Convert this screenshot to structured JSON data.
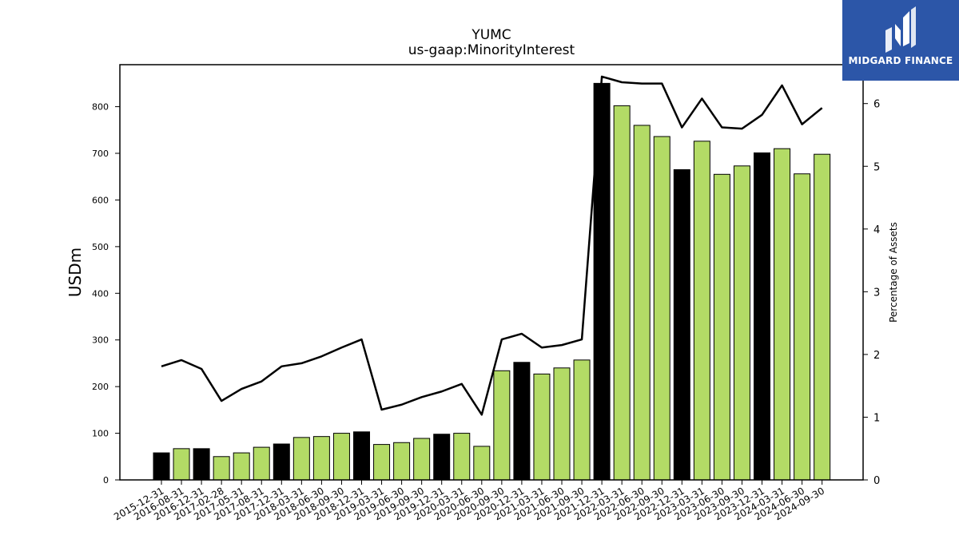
{
  "brand": {
    "name": "MIDGARD FINANCE",
    "icon": "midgard-m-logo-icon",
    "bg_color": "#2c56a8"
  },
  "chart_data": {
    "type": "bar",
    "title": "YUMC",
    "subtitle": "us-gaap:MinorityInterest",
    "ylabel": "USDm",
    "ylabel_right": "Percentage of Assets",
    "ylim": [
      0,
      890
    ],
    "ylim_right": [
      0,
      6.62
    ],
    "yticks": [
      0,
      100,
      200,
      300,
      400,
      500,
      600,
      700,
      800
    ],
    "yticks_right": [
      0,
      1,
      2,
      3,
      4,
      5,
      6
    ],
    "grid": false,
    "colors": {
      "annual": "#000000",
      "interim": "#b3db66",
      "line": "#000000"
    },
    "categories": [
      "2015-12-31",
      "2016-08-31",
      "2016-12-31",
      "2017-02-28",
      "2017-05-31",
      "2017-08-31",
      "2017-12-31",
      "2018-03-31",
      "2018-06-30",
      "2018-09-30",
      "2018-12-31",
      "2019-03-31",
      "2019-06-30",
      "2019-09-30",
      "2019-12-31",
      "2020-03-31",
      "2020-06-30",
      "2020-09-30",
      "2020-12-31",
      "2021-03-31",
      "2021-06-30",
      "2021-09-30",
      "2021-12-31",
      "2022-03-31",
      "2022-06-30",
      "2022-09-30",
      "2022-12-31",
      "2023-03-31",
      "2023-06-30",
      "2023-09-30",
      "2023-12-31",
      "2024-03-31",
      "2024-06-30",
      "2024-09-30"
    ],
    "series": [
      {
        "kind": "bar",
        "values": [
          58,
          67,
          67,
          50,
          58,
          70,
          77,
          91,
          93,
          100,
          103,
          76,
          80,
          89,
          98,
          100,
          72,
          234,
          252,
          227,
          240,
          257,
          850,
          802,
          760,
          736,
          665,
          726,
          655,
          673,
          701,
          710,
          656,
          698
        ],
        "annual": [
          true,
          false,
          true,
          false,
          false,
          false,
          true,
          false,
          false,
          false,
          true,
          false,
          false,
          false,
          true,
          false,
          false,
          false,
          true,
          false,
          false,
          false,
          true,
          false,
          false,
          false,
          true,
          false,
          false,
          false,
          true,
          false,
          false,
          false
        ]
      },
      {
        "kind": "line",
        "axis": "right",
        "values": [
          1.81,
          1.91,
          1.77,
          1.26,
          1.45,
          1.57,
          1.81,
          1.86,
          1.97,
          2.11,
          2.24,
          1.12,
          1.2,
          1.32,
          1.41,
          1.53,
          1.04,
          2.24,
          2.33,
          2.11,
          2.15,
          2.24,
          6.43,
          6.34,
          6.32,
          6.32,
          5.62,
          6.08,
          5.62,
          5.6,
          5.82,
          6.29,
          5.67,
          5.93
        ]
      }
    ]
  }
}
